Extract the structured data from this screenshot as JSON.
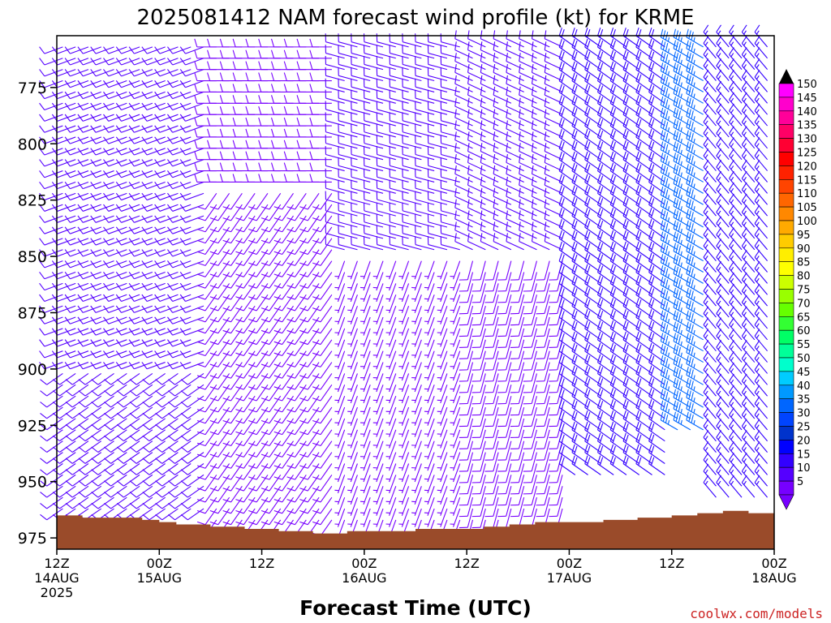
{
  "title": "2025081412 NAM forecast wind profile (kt) for KRME",
  "xlabel": "Forecast Time (UTC)",
  "credit": "coolwx.com/models",
  "colors": {
    "terrain": "#9a4b2a",
    "credit": "#cc2222",
    "barb_default": "#8a2be2"
  },
  "chart_data": {
    "type": "wind-barb time-height section",
    "x_ticks": [
      {
        "line1": "12Z",
        "line2": "14AUG",
        "line3": "2025",
        "hour": 0
      },
      {
        "line1": "00Z",
        "line2": "15AUG",
        "line3": "",
        "hour": 12
      },
      {
        "line1": "12Z",
        "line2": "",
        "line3": "",
        "hour": 24
      },
      {
        "line1": "00Z",
        "line2": "16AUG",
        "line3": "",
        "hour": 36
      },
      {
        "line1": "12Z",
        "line2": "",
        "line3": "",
        "hour": 48
      },
      {
        "line1": "00Z",
        "line2": "17AUG",
        "line3": "",
        "hour": 60
      },
      {
        "line1": "12Z",
        "line2": "",
        "line3": "",
        "hour": 72
      },
      {
        "line1": "00Z",
        "line2": "18AUG",
        "line3": "",
        "hour": 84
      }
    ],
    "x_range_hours": [
      0,
      84
    ],
    "y_ticks": [
      "775",
      "800",
      "825",
      "850",
      "875",
      "900",
      "925",
      "950",
      "975"
    ],
    "y_range_hPa": [
      752,
      980
    ],
    "colorbar": {
      "labels": [
        "150",
        "145",
        "140",
        "135",
        "130",
        "125",
        "120",
        "115",
        "110",
        "105",
        "100",
        "95",
        "90",
        "85",
        "80",
        "75",
        "70",
        "65",
        "60",
        "55",
        "50",
        "45",
        "40",
        "35",
        "30",
        "25",
        "20",
        "15",
        "10",
        "5"
      ],
      "colors": [
        "#ff00ff",
        "#ff00cc",
        "#ff0099",
        "#ff0066",
        "#ff0033",
        "#ff0000",
        "#ff2200",
        "#ff4400",
        "#ff6600",
        "#ff8800",
        "#ffaa00",
        "#ffcc00",
        "#ffee00",
        "#ffff00",
        "#ccff00",
        "#99ff00",
        "#66ff00",
        "#33ff33",
        "#00ff66",
        "#00ff99",
        "#00ffcc",
        "#00ccff",
        "#0099ff",
        "#0066ff",
        "#0044ff",
        "#0033cc",
        "#0000ff",
        "#3300ff",
        "#5500ff",
        "#7700ff"
      ]
    },
    "terrain_surface_hPa": [
      {
        "hour": 0,
        "p": 965
      },
      {
        "hour": 3,
        "p": 966
      },
      {
        "hour": 6,
        "p": 966
      },
      {
        "hour": 10,
        "p": 967
      },
      {
        "hour": 12,
        "p": 968
      },
      {
        "hour": 14,
        "p": 969
      },
      {
        "hour": 18,
        "p": 970
      },
      {
        "hour": 22,
        "p": 971
      },
      {
        "hour": 26,
        "p": 972
      },
      {
        "hour": 30,
        "p": 973
      },
      {
        "hour": 34,
        "p": 972
      },
      {
        "hour": 38,
        "p": 972
      },
      {
        "hour": 42,
        "p": 971
      },
      {
        "hour": 46,
        "p": 971
      },
      {
        "hour": 50,
        "p": 970
      },
      {
        "hour": 53,
        "p": 969
      },
      {
        "hour": 56,
        "p": 968
      },
      {
        "hour": 60,
        "p": 968
      },
      {
        "hour": 64,
        "p": 967
      },
      {
        "hour": 68,
        "p": 966
      },
      {
        "hour": 72,
        "p": 965
      },
      {
        "hour": 75,
        "p": 964
      },
      {
        "hour": 78,
        "p": 963
      },
      {
        "hour": 81,
        "p": 964
      },
      {
        "hour": 84,
        "p": 965
      }
    ],
    "wind_regimes": [
      {
        "hours": [
          0,
          18
        ],
        "levels_hPa": [
          752,
          900
        ],
        "dir_deg": 250,
        "speed_kt": 10
      },
      {
        "hours": [
          0,
          18
        ],
        "levels_hPa": [
          900,
          966
        ],
        "dir_deg": 235,
        "speed_kt": 12
      },
      {
        "hours": [
          18,
          33
        ],
        "levels_hPa": [
          752,
          820
        ],
        "dir_deg": 270,
        "speed_kt": 8
      },
      {
        "hours": [
          18,
          33
        ],
        "levels_hPa": [
          820,
          970
        ],
        "dir_deg": 215,
        "speed_kt": 8
      },
      {
        "hours": [
          33,
          48
        ],
        "levels_hPa": [
          752,
          850
        ],
        "dir_deg": 285,
        "speed_kt": 10
      },
      {
        "hours": [
          33,
          48
        ],
        "levels_hPa": [
          850,
          971
        ],
        "dir_deg": 200,
        "speed_kt": 7
      },
      {
        "hours": [
          48,
          60
        ],
        "levels_hPa": [
          752,
          850
        ],
        "dir_deg": 295,
        "speed_kt": 10
      },
      {
        "hours": [
          48,
          60
        ],
        "levels_hPa": [
          850,
          969
        ],
        "dir_deg": 195,
        "speed_kt": 8
      },
      {
        "hours": [
          60,
          72
        ],
        "levels_hPa": [
          752,
          950
        ],
        "dir_deg": 305,
        "speed_kt": 18
      },
      {
        "hours": [
          72,
          76
        ],
        "levels_hPa": [
          752,
          930
        ],
        "dir_deg": 300,
        "speed_kt": 35
      },
      {
        "hours": [
          76,
          84
        ],
        "levels_hPa": [
          752,
          960
        ],
        "dir_deg": 320,
        "speed_kt": 15
      }
    ]
  }
}
